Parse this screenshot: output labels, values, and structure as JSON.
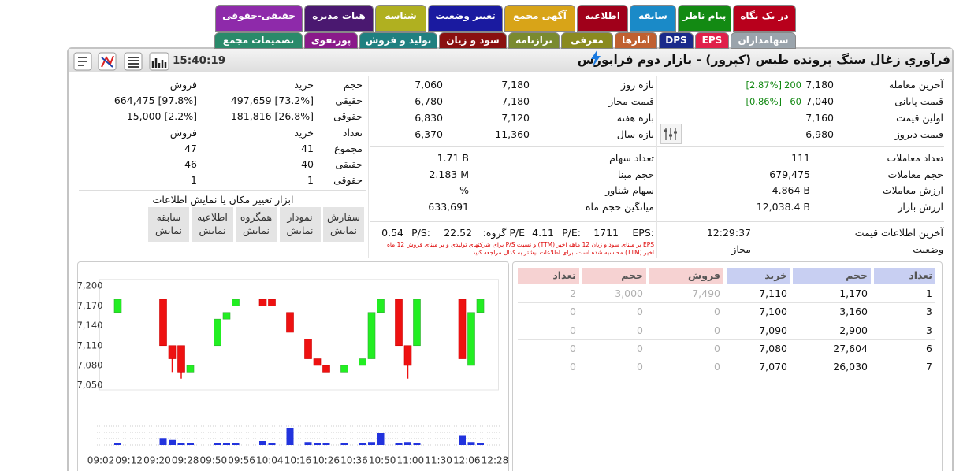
{
  "tabs_row1": [
    {
      "label": "در یک نگاه",
      "color": "#b8001c"
    },
    {
      "label": "پیام ناظر",
      "color": "#138a13"
    },
    {
      "label": "سابقه",
      "color": "#1a8ac8"
    },
    {
      "label": "اطلاعیه",
      "color": "#a0001a"
    },
    {
      "label": "آگهی مجمع",
      "color": "#d8a418"
    },
    {
      "label": "تغییر وضعیت",
      "color": "#1a1aa0"
    },
    {
      "label": "شناسه",
      "color": "#b0b020"
    },
    {
      "label": "هیات مدیره",
      "color": "#4a1870"
    },
    {
      "label": "حقیقی-حقوقی",
      "color": "#8e2aaa"
    }
  ],
  "tabs_row2": [
    {
      "label": "سهامداران",
      "color": "#9aa4ac"
    },
    {
      "label": "EPS",
      "color": "#e0204a"
    },
    {
      "label": "DPS",
      "color": "#1a2a8a"
    },
    {
      "label": "آمارها",
      "color": "#c06030"
    },
    {
      "label": "معرفی",
      "color": "#8a8a20"
    },
    {
      "label": "ترازنامه",
      "color": "#7a8a30"
    },
    {
      "label": "سود و زیان",
      "color": "#8a1010"
    },
    {
      "label": "تولید و فروش",
      "color": "#208080"
    },
    {
      "label": "پورتفوی",
      "color": "#8a1a8a"
    },
    {
      "label": "تصمیمات مجمع",
      "color": "#2a8a6a"
    }
  ],
  "header": {
    "title": "فرآوري زغال سنگ پرونده طبس (کپرور) - بازار دوم فرابورس",
    "time": "15:40:19"
  },
  "prices": [
    {
      "label": "آخرین معامله",
      "value": "7,180",
      "change": "200",
      "percent": "[2.87%]"
    },
    {
      "label": "قیمت پایانی",
      "value": "7,040",
      "change": "60",
      "percent": "[0.86%]"
    },
    {
      "label": "اولین قیمت",
      "value": "7,160"
    },
    {
      "label": "قیمت دیروز",
      "value": "6,980"
    }
  ],
  "trades": [
    [
      "تعداد معاملات",
      "111"
    ],
    [
      "حجم معاملات",
      "679,475"
    ],
    [
      "ارزش معاملات",
      "4.864 B"
    ],
    [
      "ارزش بازار",
      "12,038.4 B"
    ]
  ],
  "info": [
    [
      "آخرین اطلاعات قیمت",
      "12:29:37"
    ],
    [
      "وضعیت",
      "مجاز"
    ]
  ],
  "ranges": [
    [
      "بازه روز",
      "7,180",
      "7,060"
    ],
    [
      "قیمت مجاز",
      "7,180",
      "6,780"
    ],
    [
      "بازه هفته",
      "7,120",
      "6,830"
    ],
    [
      "بازه سال",
      "11,360",
      "6,370"
    ]
  ],
  "stats": [
    [
      "تعداد سهام",
      "1.71 B"
    ],
    [
      "حجم مبنا",
      "2.183 M"
    ],
    [
      "سهام شناور",
      "%"
    ],
    [
      "میانگین حجم ماه",
      "633,691"
    ]
  ],
  "ratios": [
    "EPS:",
    "1711",
    "P/E:",
    "4.11",
    "P/E گروه:",
    "22.52",
    "P/S:",
    "0.54"
  ],
  "note": "EPS بر مبنای سود و زیان 12 ماهه اخیر (TTM) و نسبت P/S برای شرکتهای تولیدی و بر مبنای فروش 12 ماه اخیر (TTM) محاسبه شده است، برای اطلاعات بیشتر به کدال مراجعه کنید.",
  "volume_table": {
    "header": [
      "حجم",
      "خرید",
      "فروش"
    ],
    "rows": [
      [
        "حقیقی",
        "497,659 [73.2%]",
        "664,475 [97.8%]"
      ],
      [
        "حقوقی",
        "181,816 [26.8%]",
        "15,000 [2.2%]"
      ]
    ]
  },
  "count_table": {
    "header": [
      "تعداد",
      "خرید",
      "فروش"
    ],
    "rows": [
      [
        "مجموع",
        "41",
        "47"
      ],
      [
        "حقیقی",
        "40",
        "46"
      ],
      [
        "حقوقی",
        "1",
        "1"
      ]
    ]
  },
  "tools": {
    "title": "ابزار تغییر مکان یا نمایش اطلاعات",
    "buttons": [
      [
        "سفارش",
        "نمایش"
      ],
      [
        "نمودار",
        "نمایش"
      ],
      [
        "همگروه",
        "نمایش"
      ],
      [
        "اطلاعیه",
        "نمایش"
      ],
      [
        "سابقه",
        "نمایش"
      ]
    ]
  },
  "order_book": {
    "buy_header": [
      "تعداد",
      "حجم",
      "خرید"
    ],
    "sell_header": [
      "فروش",
      "حجم",
      "تعداد"
    ],
    "rows": [
      {
        "buy": [
          "1",
          "1,170",
          "7,110"
        ],
        "sell": [
          "7,490",
          "3,000",
          "2"
        ]
      },
      {
        "buy": [
          "3",
          "3,160",
          "7,100"
        ],
        "sell": [
          "0",
          "0",
          "0"
        ]
      },
      {
        "buy": [
          "3",
          "2,900",
          "7,090"
        ],
        "sell": [
          "0",
          "0",
          "0"
        ]
      },
      {
        "buy": [
          "6",
          "27,604",
          "7,080"
        ],
        "sell": [
          "0",
          "0",
          "0"
        ]
      },
      {
        "buy": [
          "7",
          "26,030",
          "7,070"
        ],
        "sell": [
          "0",
          "0",
          "0"
        ]
      }
    ]
  },
  "chart_data": {
    "type": "candlestick",
    "up_color": "#22ee22",
    "down_color": "#ee1111",
    "volume_color": "#2233dd",
    "xlim": [
      -1,
      43
    ],
    "ylim": [
      7043,
      7210
    ],
    "yticks": [
      {
        "value": 7200,
        "label": "7,200"
      },
      {
        "value": 7170,
        "label": "7,170"
      },
      {
        "value": 7140,
        "label": "7,140"
      },
      {
        "value": 7110,
        "label": "7,110"
      },
      {
        "value": 7080,
        "label": "7,080"
      },
      {
        "value": 7050,
        "label": "7,050"
      }
    ],
    "x_labels": [
      "09:02",
      "09:12",
      "09:20",
      "09:28",
      "09:50",
      "09:56",
      "10:04",
      "10:16",
      "10:26",
      "10:36",
      "10:50",
      "11:00",
      "11:30",
      "12:06",
      "12:28"
    ],
    "x": [
      1,
      6,
      7,
      8,
      9,
      12,
      13,
      14,
      17,
      18,
      20,
      22,
      23,
      24,
      26,
      28,
      29,
      30,
      32,
      33,
      34,
      39,
      40,
      41
    ],
    "open": [
      7160,
      7180,
      7110,
      7110,
      7070,
      7110,
      7150,
      7170,
      7180,
      7180,
      7160,
      7120,
      7090,
      7080,
      7070,
      7080,
      7090,
      7160,
      7180,
      7110,
      7110,
      7180,
      7080,
      7160
    ],
    "high": [
      7180,
      7180,
      7110,
      7110,
      7080,
      7150,
      7160,
      7180,
      7180,
      7180,
      7160,
      7120,
      7090,
      7080,
      7080,
      7090,
      7160,
      7180,
      7180,
      7110,
      7180,
      7180,
      7160,
      7180
    ],
    "low": [
      7160,
      7110,
      7070,
      7060,
      7070,
      7110,
      7150,
      7170,
      7170,
      7170,
      7130,
      7090,
      7080,
      7070,
      7070,
      7080,
      7090,
      7160,
      7110,
      7060,
      7110,
      7090,
      7080,
      7160
    ],
    "close": [
      7180,
      7110,
      7090,
      7070,
      7080,
      7150,
      7160,
      7180,
      7170,
      7170,
      7130,
      7090,
      7080,
      7070,
      7080,
      7090,
      7160,
      7180,
      7110,
      7080,
      7180,
      7090,
      7160,
      7180
    ],
    "volume": [
      2,
      7,
      5,
      2,
      2,
      2,
      2,
      2,
      4,
      2,
      17,
      3,
      2,
      2,
      2,
      2,
      3,
      12,
      2,
      3,
      2,
      10,
      3,
      2
    ],
    "vlim": [
      0,
      20
    ]
  }
}
